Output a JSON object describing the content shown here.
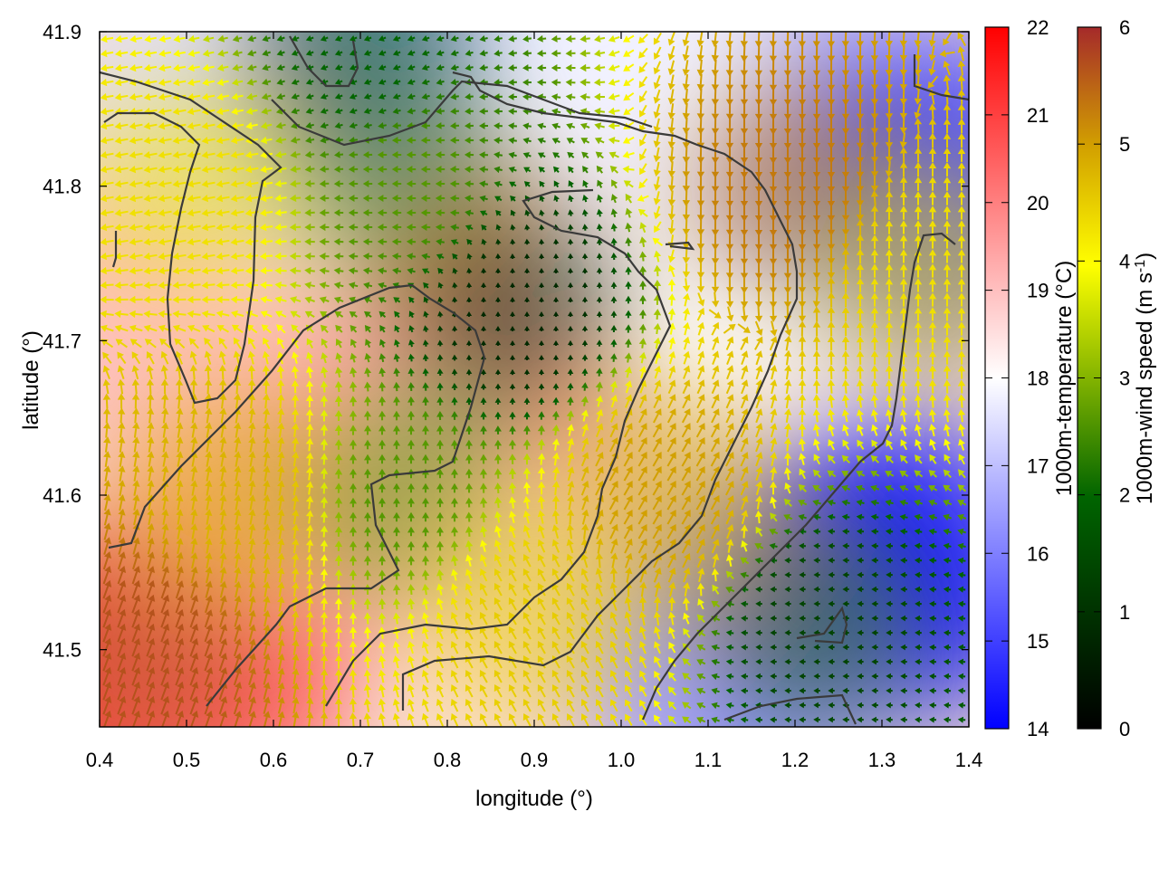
{
  "chart_data": {
    "type": "heatmap",
    "title": "",
    "xlabel": "longitude (°)",
    "ylabel": "latitude (°)",
    "xlim": [
      0.4,
      1.4
    ],
    "ylim": [
      41.45,
      41.9
    ],
    "xticks": [
      "0.4",
      "0.5",
      "0.6",
      "0.7",
      "0.8",
      "0.9",
      "1.0",
      "1.1",
      "1.2",
      "1.3",
      "1.4"
    ],
    "yticks": [
      "41.5",
      "41.6",
      "41.7",
      "41.8",
      "41.9"
    ],
    "temperature_colorbar": {
      "label": "1000m-temperature (°C)",
      "range": [
        14,
        22
      ],
      "ticks": [
        "14",
        "15",
        "16",
        "17",
        "18",
        "19",
        "20",
        "21",
        "22"
      ],
      "colors": [
        "#0000ff",
        "#ffffff",
        "#ff0000"
      ]
    },
    "wind_colorbar": {
      "label_main": "1000m-wind speed (m s",
      "label_sup": "-1",
      "label_end": ")",
      "range": [
        0,
        6
      ],
      "ticks": [
        "0",
        "1",
        "2",
        "3",
        "4",
        "5",
        "6"
      ],
      "colors": [
        "#000000",
        "#006400",
        "#ffff00",
        "#d2a000",
        "#a52a2a"
      ]
    },
    "temperature_field": [
      {
        "lon": 0.42,
        "lat": 41.48,
        "value": 21.5
      },
      {
        "lon": 0.52,
        "lat": 41.5,
        "value": 20.5
      },
      {
        "lon": 0.6,
        "lat": 41.62,
        "value": 19.5
      },
      {
        "lon": 0.45,
        "lat": 41.72,
        "value": 19.0
      },
      {
        "lon": 0.55,
        "lat": 41.86,
        "value": 17.5
      },
      {
        "lon": 0.75,
        "lat": 41.88,
        "value": 16.5
      },
      {
        "lon": 0.88,
        "lat": 41.72,
        "value": 19.8
      },
      {
        "lon": 0.8,
        "lat": 41.6,
        "value": 19.2
      },
      {
        "lon": 0.95,
        "lat": 41.5,
        "value": 18.5
      },
      {
        "lon": 1.1,
        "lat": 41.75,
        "value": 18.0
      },
      {
        "lon": 1.2,
        "lat": 41.85,
        "value": 17.0
      },
      {
        "lon": 1.34,
        "lat": 41.8,
        "value": 15.2
      },
      {
        "lon": 1.3,
        "lat": 41.55,
        "value": 14.6
      },
      {
        "lon": 1.12,
        "lat": 41.48,
        "value": 16.5
      },
      {
        "lon": 1.0,
        "lat": 41.88,
        "value": 17.8
      }
    ],
    "wind_field": [
      {
        "lon": 0.45,
        "lat": 41.5,
        "speed": 5.5,
        "dir_deg": 70
      },
      {
        "lon": 0.55,
        "lat": 41.6,
        "speed": 4.2,
        "dir_deg": 80
      },
      {
        "lon": 0.5,
        "lat": 41.8,
        "speed": 3.5,
        "dir_deg": 190
      },
      {
        "lon": 0.75,
        "lat": 41.8,
        "speed": 2.0,
        "dir_deg": 180
      },
      {
        "lon": 0.88,
        "lat": 41.72,
        "speed": 0.6,
        "dir_deg": 90
      },
      {
        "lon": 0.75,
        "lat": 41.6,
        "speed": 2.0,
        "dir_deg": 90
      },
      {
        "lon": 0.9,
        "lat": 41.52,
        "speed": 3.8,
        "dir_deg": 120
      },
      {
        "lon": 1.05,
        "lat": 41.6,
        "speed": 4.5,
        "dir_deg": 60
      },
      {
        "lon": 1.2,
        "lat": 41.8,
        "speed": 5.0,
        "dir_deg": 270
      },
      {
        "lon": 1.35,
        "lat": 41.75,
        "speed": 3.5,
        "dir_deg": 90
      },
      {
        "lon": 1.22,
        "lat": 41.52,
        "speed": 1.0,
        "dir_deg": 180
      },
      {
        "lon": 0.7,
        "lat": 41.88,
        "speed": 1.5,
        "dir_deg": 200
      }
    ],
    "grid": false,
    "legend": "colorbars right"
  }
}
